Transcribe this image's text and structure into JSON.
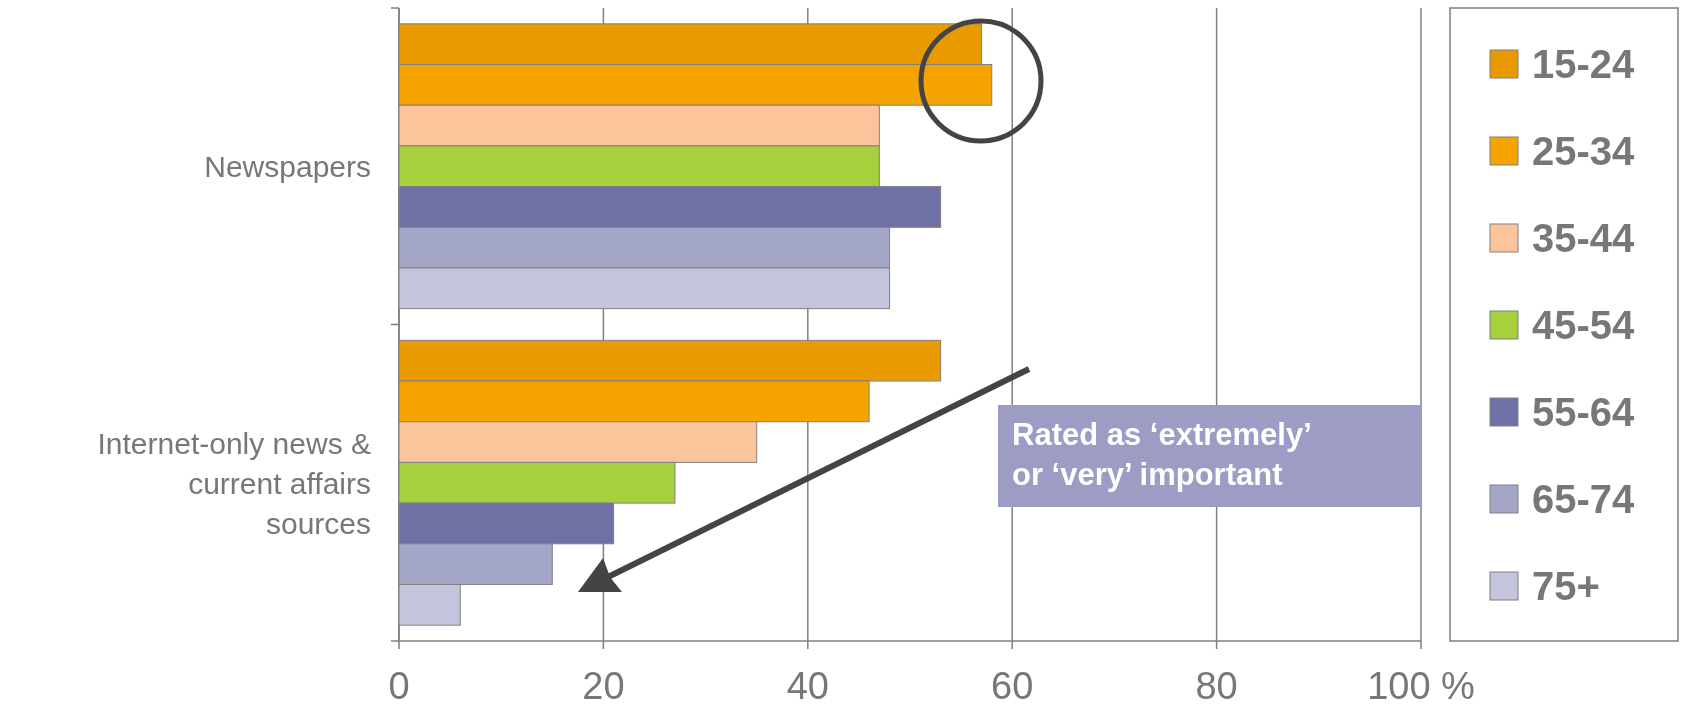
{
  "chart_data": {
    "type": "bar",
    "orientation": "horizontal",
    "categories": [
      "Newspapers",
      "Internet-only news & current affairs sources"
    ],
    "series": [
      {
        "name": "15-24",
        "color": "#e89a00",
        "values": [
          57,
          53
        ]
      },
      {
        "name": "25-34",
        "color": "#f5a300",
        "values": [
          58,
          46
        ]
      },
      {
        "name": "35-44",
        "color": "#fbc49a",
        "values": [
          47,
          35
        ]
      },
      {
        "name": "45-54",
        "color": "#a6d03c",
        "values": [
          47,
          27
        ]
      },
      {
        "name": "55-64",
        "color": "#6e70a6",
        "values": [
          53,
          21
        ]
      },
      {
        "name": "65-74",
        "color": "#a4a6c8",
        "values": [
          48,
          15
        ]
      },
      {
        "name": "75+",
        "color": "#c4c5dc",
        "values": [
          48,
          6
        ]
      }
    ],
    "xlim": [
      0,
      100
    ],
    "xticks": [
      0,
      20,
      40,
      60,
      80,
      {
        "value": 100,
        "label": "100 %"
      }
    ],
    "grid": "x",
    "legend": "right",
    "annotations": [
      "Rated as ‘extremely’ or ‘very’ important"
    ]
  }
}
